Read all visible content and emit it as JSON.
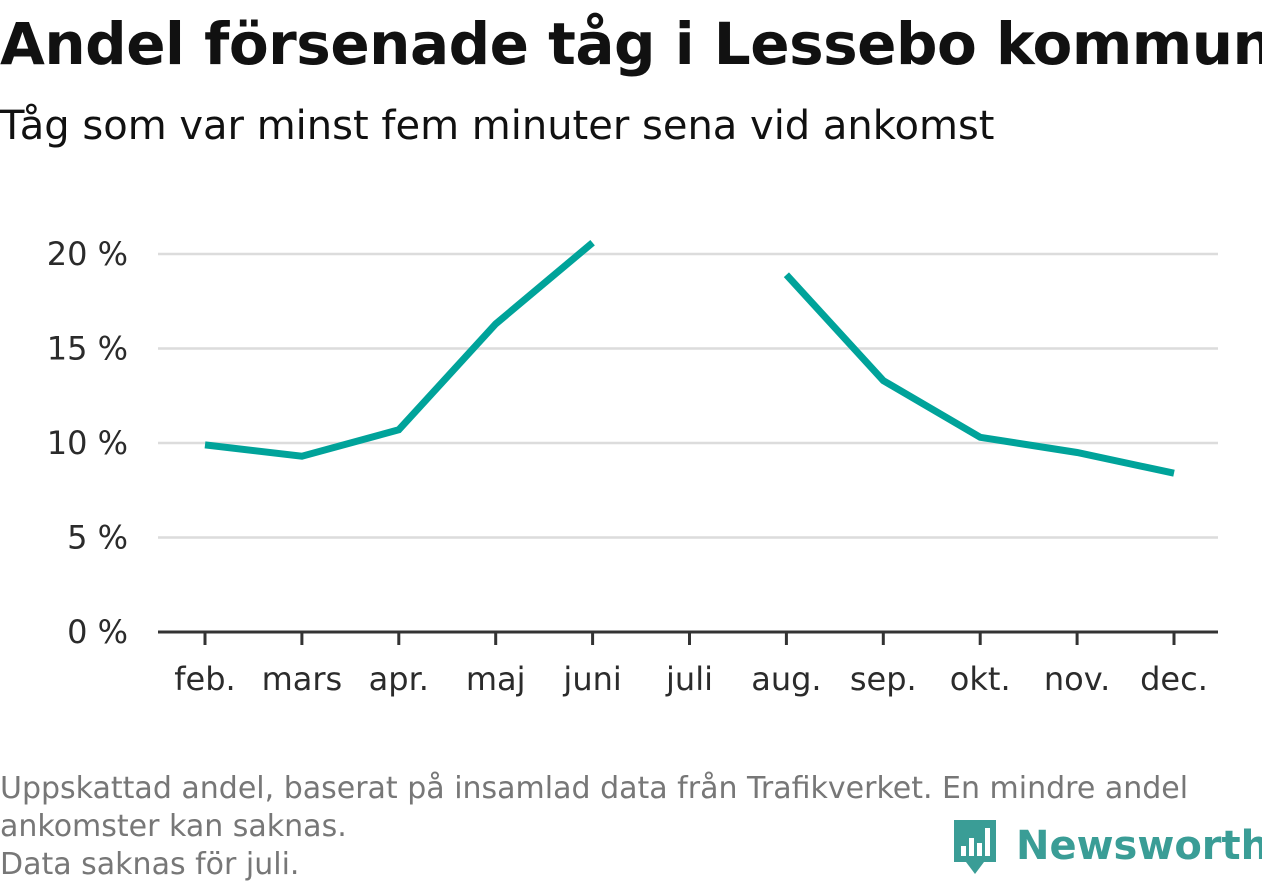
{
  "chart_data": {
    "type": "line",
    "title": "Andel försenade tåg i Lessebo kommun",
    "subtitle": "Tåg som var minst fem minuter sena vid ankomst",
    "categories": [
      "feb.",
      "mars",
      "apr.",
      "maj",
      "juni",
      "juli",
      "aug.",
      "sep.",
      "okt.",
      "nov.",
      "dec."
    ],
    "series": [
      {
        "values": [
          9.9,
          9.3,
          10.7,
          16.3,
          20.6,
          null,
          18.9,
          13.3,
          10.3,
          9.5,
          8.4
        ]
      }
    ],
    "ylim": [
      0,
      21
    ],
    "yticks": [
      0,
      5,
      10,
      15,
      20
    ],
    "ytick_labels": [
      "0 %",
      "5 %",
      "10 %",
      "15 %",
      "20 %"
    ],
    "grid": true,
    "line_color": "#00a39a"
  },
  "footnote": {
    "line1": "Uppskattad andel, baserat på insamlad data från Trafikverket. En mindre andel",
    "line2": "ankomster kan saknas.",
    "line3": "Data saknas för juli."
  },
  "brand": {
    "name": "Newsworthy",
    "icon": "newsworthy-logo-icon",
    "color": "#3a9d96"
  }
}
